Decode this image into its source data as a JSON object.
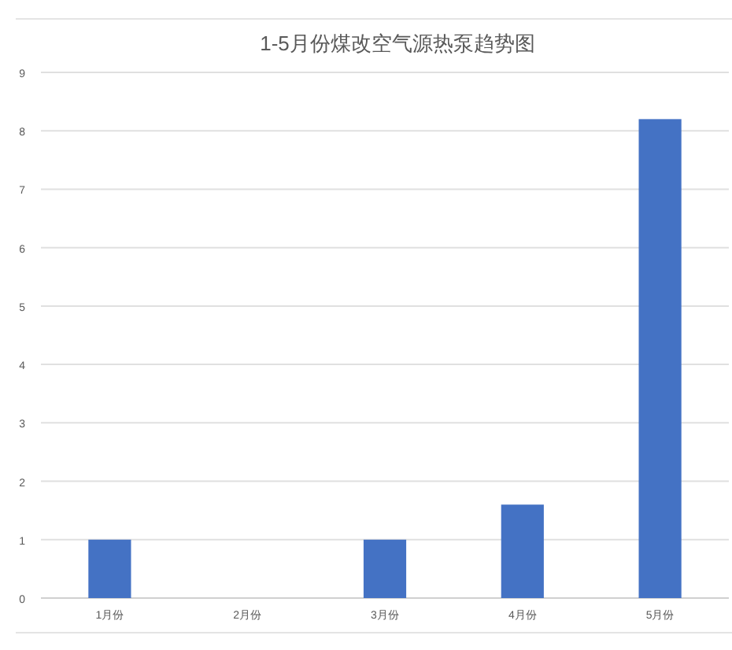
{
  "chart_data": {
    "type": "bar",
    "title": "1-5月份煤改空气源热泵趋势图",
    "categories": [
      "1月份",
      "2月份",
      "3月份",
      "4月份",
      "5月份"
    ],
    "values": [
      1,
      0,
      1,
      1.6,
      8.2
    ],
    "color": "#4472c4",
    "ylim": [
      0,
      9
    ],
    "yticks": [
      0,
      1,
      2,
      3,
      4,
      5,
      6,
      7,
      8,
      9
    ],
    "grid": "y"
  }
}
